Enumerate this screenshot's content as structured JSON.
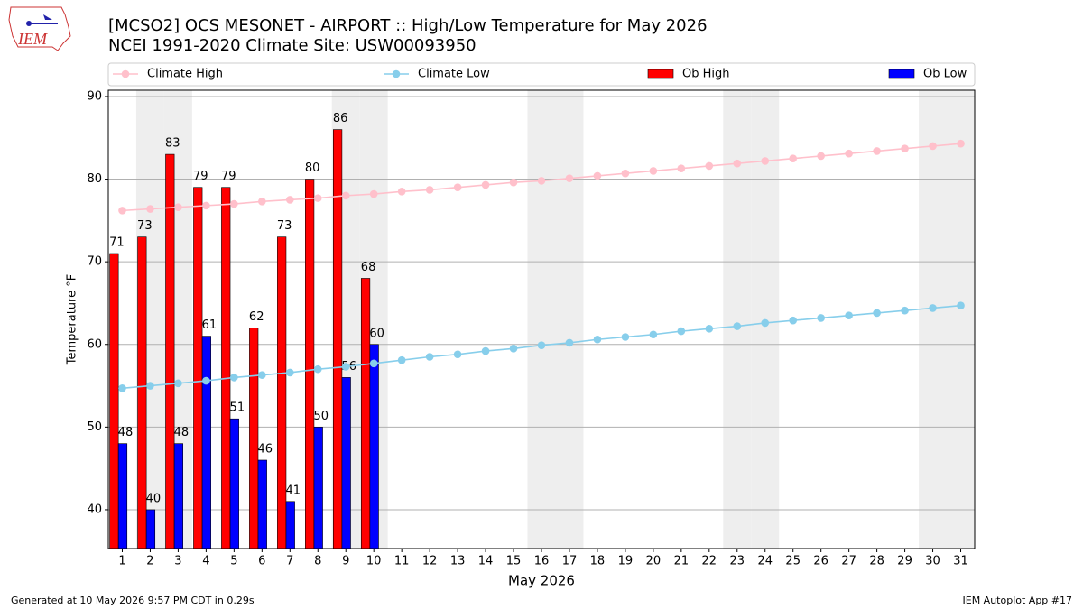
{
  "chart_data": {
    "type": "bar",
    "logo_text": "IEM",
    "title": "[MCSO2] OCS MESONET - AIRPORT :: High/Low Temperature for May 2026",
    "subtitle": "NCEI 1991-2020 Climate Site: USW00093950",
    "x_label": "May 2026",
    "y_label": "Temperature °F",
    "footer_left": "Generated at 10 May 2026 9:57 PM CDT in 0.29s",
    "footer_right": "IEM Autoplot App #17",
    "x": [
      1,
      2,
      3,
      4,
      5,
      6,
      7,
      8,
      9,
      10,
      11,
      12,
      13,
      14,
      15,
      16,
      17,
      18,
      19,
      20,
      21,
      22,
      23,
      24,
      25,
      26,
      27,
      28,
      29,
      30,
      31
    ],
    "xlim": [
      0.5,
      31.5
    ],
    "xticks": [
      1,
      2,
      3,
      4,
      5,
      6,
      7,
      8,
      9,
      10,
      11,
      12,
      13,
      14,
      15,
      16,
      17,
      18,
      19,
      20,
      21,
      22,
      23,
      24,
      25,
      26,
      27,
      28,
      29,
      30,
      31
    ],
    "ylim": [
      35.3,
      90.76
    ],
    "yticks": [
      40,
      50,
      60,
      70,
      80,
      90
    ],
    "grid": true,
    "shaded_days": [
      2,
      3,
      9,
      10,
      16,
      17,
      23,
      24,
      30,
      31
    ],
    "legend": "top",
    "series": [
      {
        "name": "Climate High",
        "type": "line",
        "color": "#ffc0cb",
        "values": [
          76.2,
          76.4,
          76.6,
          76.8,
          77.0,
          77.3,
          77.5,
          77.7,
          78.0,
          78.2,
          78.5,
          78.7,
          79.0,
          79.3,
          79.6,
          79.8,
          80.1,
          80.4,
          80.7,
          81.0,
          81.3,
          81.6,
          81.9,
          82.2,
          82.5,
          82.8,
          83.1,
          83.4,
          83.7,
          84.0,
          84.3
        ]
      },
      {
        "name": "Climate Low",
        "type": "line",
        "color": "#87ceeb",
        "values": [
          54.7,
          55.0,
          55.3,
          55.6,
          56.0,
          56.3,
          56.6,
          57.0,
          57.3,
          57.7,
          58.1,
          58.5,
          58.8,
          59.2,
          59.5,
          59.9,
          60.2,
          60.6,
          60.9,
          61.2,
          61.6,
          61.9,
          62.2,
          62.6,
          62.9,
          63.2,
          63.5,
          63.8,
          64.1,
          64.4,
          64.7
        ]
      },
      {
        "name": "Ob High",
        "type": "bar",
        "color": "#ff0000",
        "values": [
          71,
          73,
          83,
          79,
          79,
          62,
          73,
          80,
          86,
          68,
          null,
          null,
          null,
          null,
          null,
          null,
          null,
          null,
          null,
          null,
          null,
          null,
          null,
          null,
          null,
          null,
          null,
          null,
          null,
          null,
          null
        ]
      },
      {
        "name": "Ob Low",
        "type": "bar",
        "color": "#0000ff",
        "values": [
          48,
          40,
          48,
          61,
          51,
          46,
          41,
          50,
          56,
          60,
          null,
          null,
          null,
          null,
          null,
          null,
          null,
          null,
          null,
          null,
          null,
          null,
          null,
          null,
          null,
          null,
          null,
          null,
          null,
          null,
          null
        ]
      }
    ]
  }
}
